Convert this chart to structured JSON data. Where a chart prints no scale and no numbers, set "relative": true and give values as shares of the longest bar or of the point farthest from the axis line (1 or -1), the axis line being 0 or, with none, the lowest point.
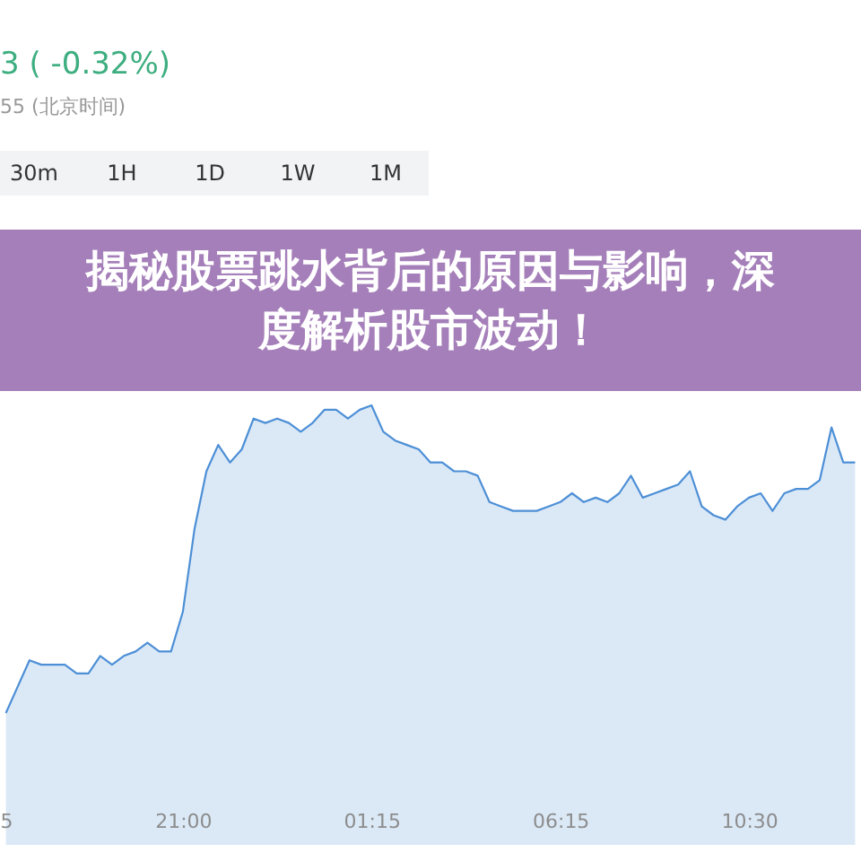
{
  "chart_data": {
    "type": "area",
    "title": "揭秘股票跳水背后的原因与影响，深度解析股市波动！",
    "relative": true,
    "categories": [
      "5",
      null,
      null,
      null,
      null,
      null,
      null,
      null,
      null,
      null,
      null,
      null,
      null,
      null,
      null,
      "21:00",
      null,
      null,
      null,
      null,
      null,
      null,
      null,
      null,
      null,
      null,
      null,
      null,
      null,
      null,
      null,
      "01:15",
      null,
      null,
      null,
      null,
      null,
      null,
      null,
      null,
      null,
      null,
      null,
      null,
      null,
      null,
      null,
      "06:15",
      null,
      null,
      null,
      null,
      null,
      null,
      null,
      null,
      null,
      null,
      null,
      null,
      null,
      null,
      null,
      "10:30",
      null,
      null,
      null,
      null,
      null,
      null,
      null,
      null,
      null
    ],
    "series": [
      {
        "color": "#4d8fd6",
        "values": [
          0.3,
          0.36,
          0.42,
          0.41,
          0.41,
          0.41,
          0.39,
          0.39,
          0.43,
          0.41,
          0.43,
          0.44,
          0.46,
          0.44,
          0.44,
          0.53,
          0.72,
          0.85,
          0.91,
          0.87,
          0.9,
          0.97,
          0.96,
          0.97,
          0.96,
          0.94,
          0.96,
          0.99,
          0.99,
          0.97,
          0.99,
          1,
          0.94,
          0.92,
          0.91,
          0.9,
          0.87,
          0.87,
          0.85,
          0.85,
          0.84,
          0.78,
          0.77,
          0.76,
          0.76,
          0.76,
          0.77,
          0.78,
          0.8,
          0.78,
          0.79,
          0.78,
          0.8,
          0.84,
          0.79,
          0.8,
          0.81,
          0.82,
          0.85,
          0.77,
          0.75,
          0.74,
          0.77,
          0.79,
          0.8,
          0.76,
          0.8,
          0.81,
          0.81,
          0.83,
          0.95,
          0.87,
          0.87
        ]
      }
    ],
    "annotations": [
      "3 ( -0.32%)",
      "55 (北京时间)",
      "30m",
      "1H",
      "1D",
      "1W",
      "1M"
    ]
  }
}
